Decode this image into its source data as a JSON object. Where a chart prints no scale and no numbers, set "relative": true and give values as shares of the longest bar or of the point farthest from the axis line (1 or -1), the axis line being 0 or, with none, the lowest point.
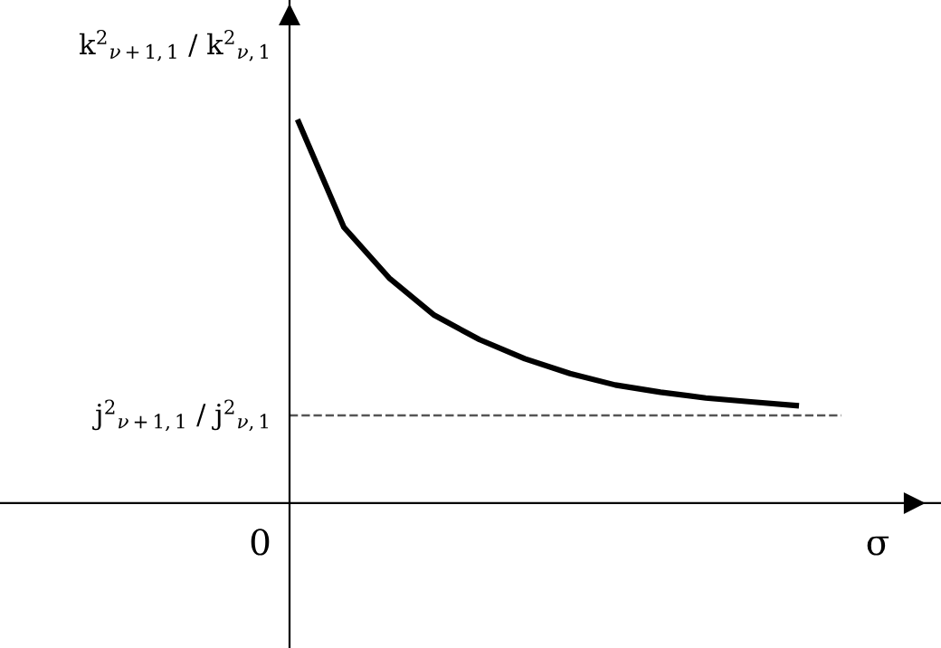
{
  "chart_data": {
    "type": "line",
    "relative": true,
    "ylabel": "k$^{2}$$_{ν+1,1}$ / k$^{2}$$_{ν,1}$",
    "xlabel": "σ",
    "annotations": [
      "0"
    ],
    "categories": [
      null,
      null,
      null,
      null,
      null,
      null,
      null,
      null,
      null,
      null,
      null,
      null
    ],
    "series": [
      {
        "color": "#000000",
        "values": [
          1,
          0.724,
          0.591,
          0.493,
          0.429,
          0.379,
          0.34,
          0.31,
          0.291,
          0.276,
          0.266,
          0.256
        ]
      }
    ],
    "ref_lines": [
      {
        "axis": "y",
        "value": 0.23,
        "label": "j$^{2}$$_{ν+1,1}$ / j$^{2}$$_{ν,1}$",
        "color": "#555555",
        "line_style": "dashed"
      }
    ],
    "grid": false,
    "marker": "none",
    "line_style": "solid"
  }
}
